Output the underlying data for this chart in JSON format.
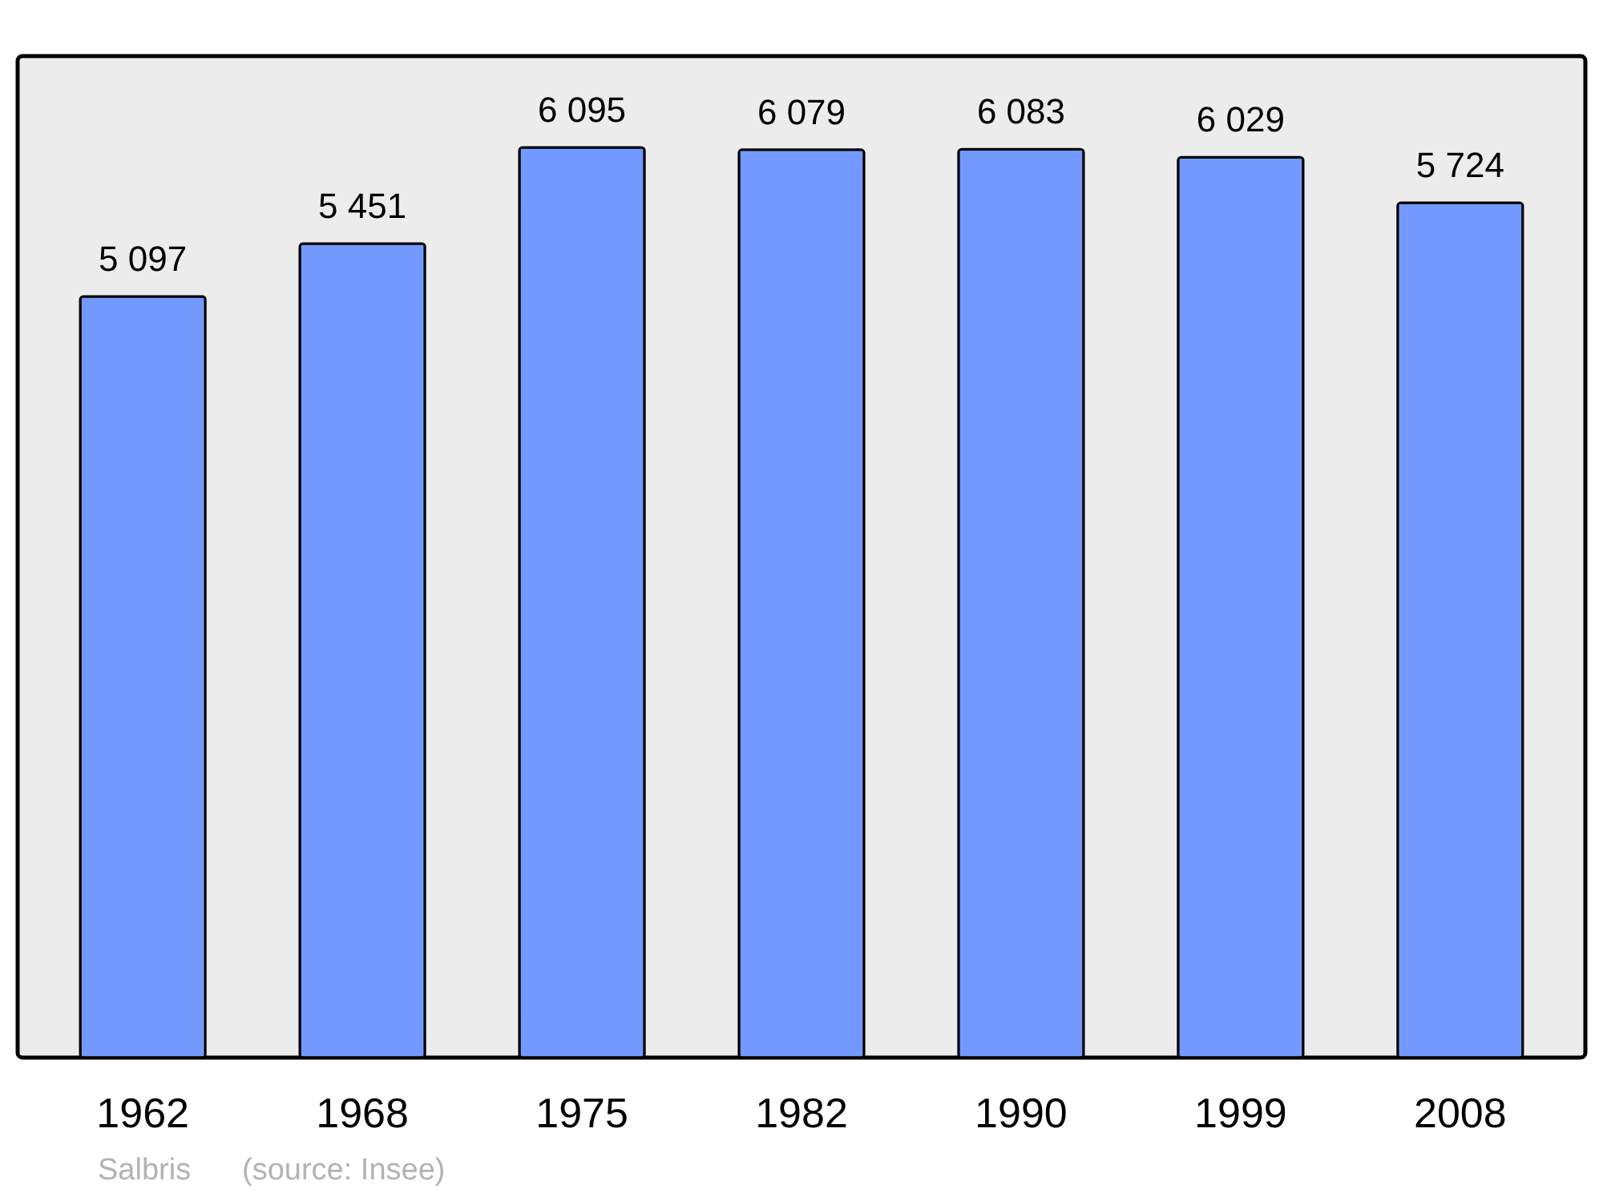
{
  "chart_data": {
    "type": "bar",
    "categories": [
      "1962",
      "1968",
      "1975",
      "1982",
      "1990",
      "1999",
      "2008"
    ],
    "values": [
      5097,
      5451,
      6095,
      6079,
      6083,
      6029,
      5724
    ],
    "value_labels": [
      "5 097",
      "5 451",
      "6 095",
      "6 079",
      "6 083",
      "6 029",
      "5 724"
    ],
    "color": "#7399ff",
    "ylim": [
      0,
      6706
    ],
    "grid": false,
    "annotations": [
      "Salbris",
      "(source: Insee)"
    ]
  }
}
